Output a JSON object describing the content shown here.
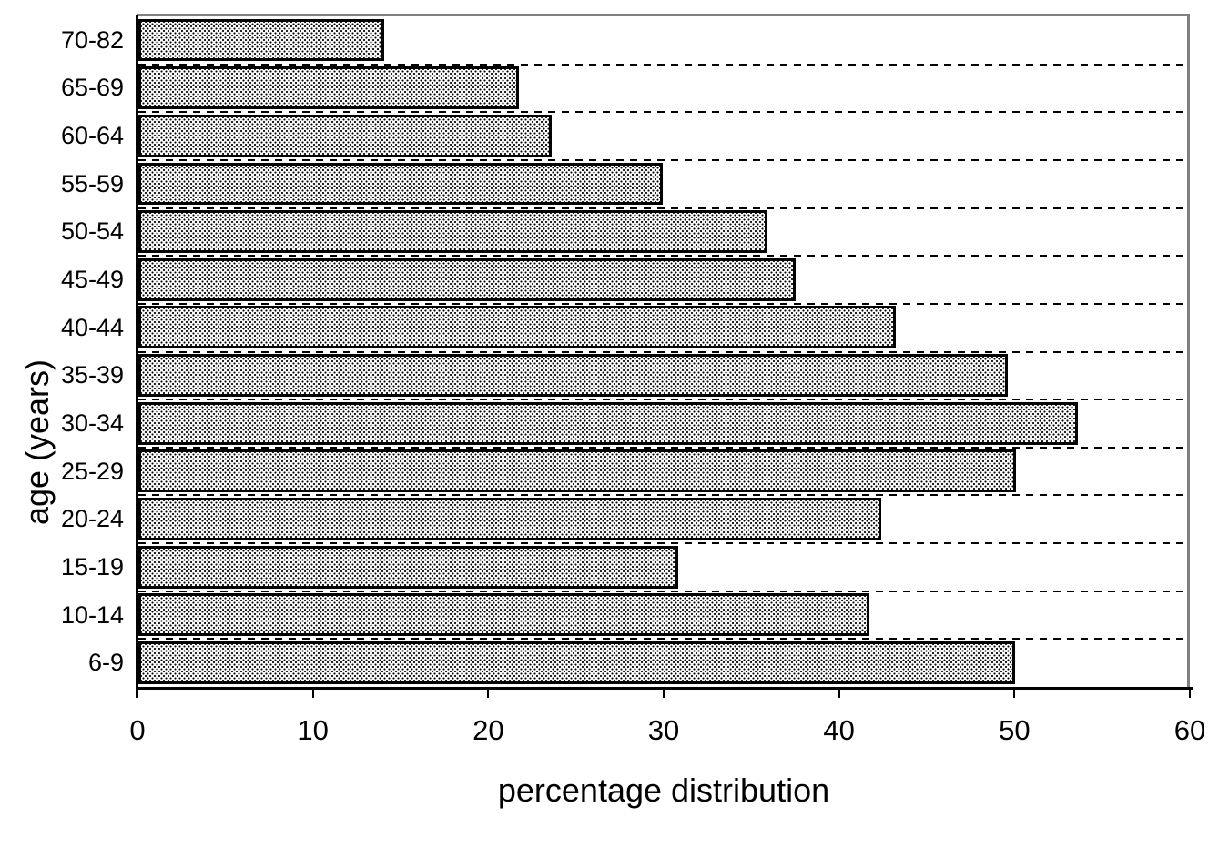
{
  "chart_data": {
    "type": "bar",
    "orientation": "horizontal",
    "title": "",
    "xlabel": "percentage distribution",
    "ylabel": "age (years)",
    "categories": [
      "70-82",
      "65-69",
      "60-64",
      "55-59",
      "50-54",
      "45-49",
      "40-44",
      "35-39",
      "30-34",
      "25-29",
      "20-24",
      "15-19",
      "10-14",
      "6-9"
    ],
    "values": [
      14.0,
      21.7,
      23.6,
      29.9,
      35.9,
      37.5,
      43.2,
      49.6,
      53.6,
      50.1,
      42.4,
      30.8,
      41.7,
      50.0
    ],
    "xlim": [
      0,
      60
    ],
    "xticks": [
      0,
      10,
      20,
      30,
      40,
      50,
      60
    ],
    "grid": "horizontal dashed lines at category boundaries",
    "legend": "none",
    "colors": {
      "bar_fill": "#fafafa",
      "bar_pattern": "black stipple dots",
      "bar_border": "#000000",
      "axis": "#000000",
      "plot_border": "#808080",
      "text": "#000000"
    }
  }
}
